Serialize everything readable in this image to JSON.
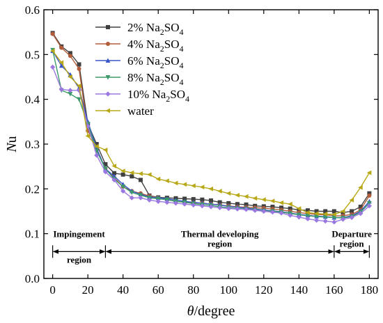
{
  "chart_data": {
    "type": "line",
    "title": "",
    "xlabel": {
      "symbol": "θ",
      "unit": "/degree"
    },
    "ylabel": {
      "symbol": "N",
      "rest": "u"
    },
    "xlim": [
      -5,
      185
    ],
    "ylim": [
      0.0,
      0.6
    ],
    "xticks": [
      0,
      20,
      40,
      60,
      80,
      100,
      120,
      140,
      160,
      180
    ],
    "yticks": [
      0.0,
      0.1,
      0.2,
      0.3,
      0.4,
      0.5,
      0.6
    ],
    "grid": false,
    "legend_position": "top-center",
    "series": [
      {
        "label": {
          "main": "2%  Na",
          "sub1": "2",
          "mid": "SO",
          "sub2": "4"
        },
        "color": "#404040",
        "marker": "square",
        "x": [
          0,
          5,
          10,
          15,
          20,
          25,
          30,
          35,
          40,
          45,
          50,
          55,
          60,
          65,
          70,
          75,
          80,
          85,
          90,
          95,
          100,
          105,
          110,
          115,
          120,
          125,
          130,
          135,
          140,
          145,
          150,
          155,
          160,
          165,
          170,
          175,
          180
        ],
        "y": [
          0.548,
          0.518,
          0.503,
          0.478,
          0.345,
          0.3,
          0.255,
          0.235,
          0.232,
          0.228,
          0.22,
          0.185,
          0.181,
          0.18,
          0.179,
          0.178,
          0.177,
          0.176,
          0.174,
          0.17,
          0.168,
          0.166,
          0.165,
          0.162,
          0.161,
          0.16,
          0.158,
          0.156,
          0.153,
          0.152,
          0.15,
          0.15,
          0.15,
          0.147,
          0.15,
          0.16,
          0.19
        ]
      },
      {
        "label": {
          "main": "4%  Na",
          "sub1": "2",
          "mid": "SO",
          "sub2": "4"
        },
        "color": "#b25c3a",
        "marker": "circle",
        "x": [
          0,
          5,
          10,
          15,
          20,
          25,
          30,
          35,
          40,
          45,
          50,
          55,
          60,
          65,
          70,
          75,
          80,
          85,
          90,
          95,
          100,
          105,
          110,
          115,
          120,
          125,
          130,
          135,
          140,
          145,
          150,
          155,
          160,
          165,
          170,
          175,
          180
        ],
        "y": [
          0.546,
          0.515,
          0.497,
          0.468,
          0.33,
          0.29,
          0.245,
          0.225,
          0.205,
          0.195,
          0.19,
          0.184,
          0.18,
          0.176,
          0.172,
          0.17,
          0.169,
          0.168,
          0.166,
          0.164,
          0.162,
          0.16,
          0.159,
          0.158,
          0.157,
          0.155,
          0.153,
          0.15,
          0.147,
          0.145,
          0.143,
          0.142,
          0.14,
          0.14,
          0.143,
          0.153,
          0.185
        ]
      },
      {
        "label": {
          "main": "6%  Na",
          "sub1": "2",
          "mid": "SO",
          "sub2": "4"
        },
        "color": "#3a55c8",
        "marker": "triangle-up",
        "x": [
          0,
          5,
          10,
          15,
          20,
          25,
          30,
          35,
          40,
          45,
          50,
          55,
          60,
          65,
          70,
          75,
          80,
          85,
          90,
          95,
          100,
          105,
          110,
          115,
          120,
          125,
          130,
          135,
          140,
          145,
          150,
          155,
          160,
          165,
          170,
          175,
          180
        ],
        "y": [
          0.508,
          0.475,
          0.455,
          0.425,
          0.35,
          0.29,
          0.245,
          0.228,
          0.21,
          0.195,
          0.188,
          0.182,
          0.18,
          0.178,
          0.175,
          0.172,
          0.17,
          0.168,
          0.166,
          0.164,
          0.161,
          0.159,
          0.157,
          0.155,
          0.153,
          0.151,
          0.149,
          0.146,
          0.143,
          0.141,
          0.139,
          0.138,
          0.136,
          0.136,
          0.14,
          0.15,
          0.172
        ]
      },
      {
        "label": {
          "main": "8%  Na",
          "sub1": "2",
          "mid": "SO",
          "sub2": "4"
        },
        "color": "#3c9a6a",
        "marker": "triangle-down",
        "x": [
          0,
          5,
          10,
          15,
          20,
          25,
          30,
          35,
          40,
          45,
          50,
          55,
          60,
          65,
          70,
          75,
          80,
          85,
          90,
          95,
          100,
          105,
          110,
          115,
          120,
          125,
          130,
          135,
          140,
          145,
          150,
          155,
          160,
          165,
          170,
          175,
          180
        ],
        "y": [
          0.51,
          0.42,
          0.412,
          0.4,
          0.345,
          0.285,
          0.245,
          0.222,
          0.205,
          0.192,
          0.186,
          0.18,
          0.178,
          0.176,
          0.172,
          0.17,
          0.167,
          0.165,
          0.163,
          0.16,
          0.158,
          0.156,
          0.155,
          0.153,
          0.151,
          0.15,
          0.148,
          0.145,
          0.142,
          0.14,
          0.138,
          0.137,
          0.136,
          0.135,
          0.138,
          0.148,
          0.168
        ]
      },
      {
        "label": {
          "main": "10%  Na",
          "sub1": "2",
          "mid": "SO",
          "sub2": "4"
        },
        "color": "#9a78e0",
        "marker": "diamond",
        "x": [
          0,
          5,
          10,
          15,
          20,
          25,
          30,
          35,
          40,
          45,
          50,
          55,
          60,
          65,
          70,
          75,
          80,
          85,
          90,
          95,
          100,
          105,
          110,
          115,
          120,
          125,
          130,
          135,
          140,
          145,
          150,
          155,
          160,
          165,
          170,
          175,
          180
        ],
        "y": [
          0.472,
          0.422,
          0.42,
          0.42,
          0.34,
          0.275,
          0.238,
          0.22,
          0.195,
          0.18,
          0.18,
          0.175,
          0.172,
          0.17,
          0.168,
          0.166,
          0.164,
          0.162,
          0.16,
          0.158,
          0.156,
          0.155,
          0.154,
          0.152,
          0.15,
          0.148,
          0.146,
          0.141,
          0.137,
          0.133,
          0.13,
          0.128,
          0.126,
          0.132,
          0.136,
          0.145,
          0.162
        ]
      },
      {
        "label": {
          "main": "water",
          "sub1": "",
          "mid": "",
          "sub2": ""
        },
        "color": "#b8a818",
        "marker": "triangle-left",
        "x": [
          0,
          5,
          10,
          15,
          20,
          25,
          30,
          35,
          40,
          45,
          50,
          55,
          60,
          65,
          70,
          75,
          80,
          85,
          90,
          95,
          100,
          105,
          110,
          115,
          120,
          125,
          130,
          135,
          140,
          145,
          150,
          155,
          160,
          165,
          170,
          175,
          180
        ],
        "y": [
          0.508,
          0.482,
          0.45,
          0.43,
          0.318,
          0.295,
          0.287,
          0.251,
          0.24,
          0.236,
          0.234,
          0.232,
          0.222,
          0.218,
          0.213,
          0.21,
          0.207,
          0.204,
          0.2,
          0.195,
          0.19,
          0.186,
          0.183,
          0.179,
          0.176,
          0.173,
          0.169,
          0.166,
          0.156,
          0.147,
          0.145,
          0.144,
          0.143,
          0.15,
          0.175,
          0.203,
          0.236
        ]
      }
    ],
    "annotations": [
      {
        "name": "impingement",
        "lines": [
          "Impingement",
          "region"
        ],
        "x_from": 0,
        "x_to": 30
      },
      {
        "name": "thermal",
        "lines": [
          "Thermal developing",
          "region"
        ],
        "x_from": 30,
        "x_to": 160
      },
      {
        "name": "departure",
        "lines": [
          "Departure",
          "region"
        ],
        "x_from": 160,
        "x_to": 180
      }
    ],
    "annotation_arrow_y": 0.06
  }
}
